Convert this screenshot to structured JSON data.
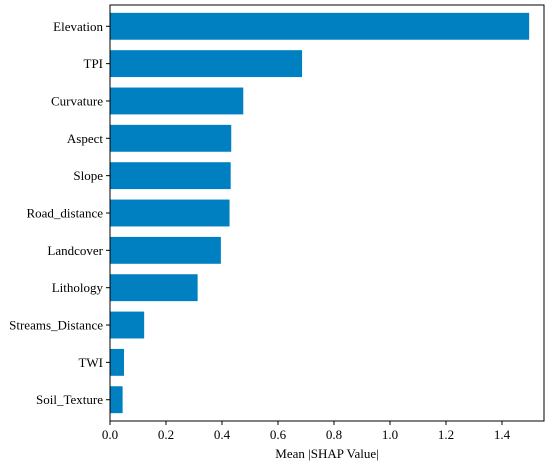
{
  "chart_data": {
    "type": "bar",
    "orientation": "horizontal",
    "categories": [
      "Elevation",
      "TPI",
      "Curvature",
      "Aspect",
      "Slope",
      "Road_distance",
      "Landcover",
      "Lithology",
      "Streams_Distance",
      "TWI",
      "Soil_Texture"
    ],
    "values": [
      1.497,
      0.686,
      0.476,
      0.433,
      0.431,
      0.427,
      0.396,
      0.313,
      0.122,
      0.05,
      0.045
    ],
    "xlabel": "Mean |SHAP Value|",
    "ylabel": "",
    "xlim": [
      0,
      1.55
    ],
    "xticks": [
      "0.0",
      "0.2",
      "0.4",
      "0.6",
      "0.8",
      "1.0",
      "1.2",
      "1.4"
    ],
    "bar_color": "#0080c0",
    "grid": false
  }
}
